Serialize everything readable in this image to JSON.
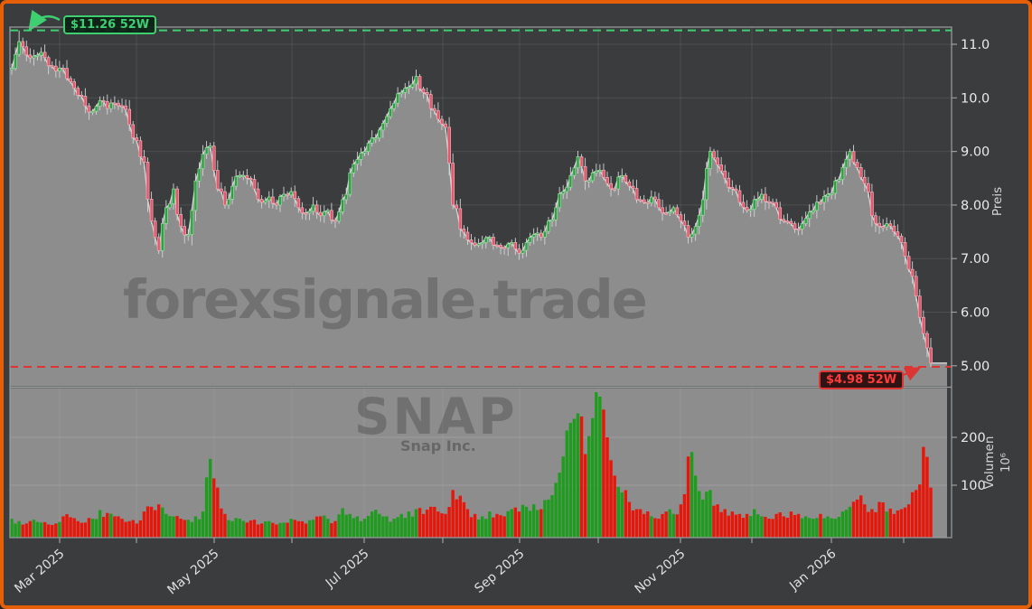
{
  "watermark": {
    "main": "forexsignale.trade",
    "symbol": "SNAP",
    "company": "Snap Inc."
  },
  "callouts": {
    "high": {
      "label": "$11.26 52W",
      "value": 11.26
    },
    "low": {
      "label": "$4.98 52W",
      "value": 4.98
    }
  },
  "axes": {
    "price_axis_label": "Preis",
    "volume_axis_label": "Volumen",
    "volume_scale_label": "10⁶",
    "price_ticks": [
      {
        "label": "11.0",
        "value": 11.0
      },
      {
        "label": "10.0",
        "value": 10.0
      },
      {
        "label": "9.00",
        "value": 9.0
      },
      {
        "label": "8.00",
        "value": 8.0
      },
      {
        "label": "7.00",
        "value": 7.0
      },
      {
        "label": "6.00",
        "value": 6.0
      },
      {
        "label": "5.00",
        "value": 5.0
      }
    ],
    "volume_ticks": [
      {
        "label": "200",
        "value": 200
      },
      {
        "label": "100",
        "value": 100
      }
    ],
    "x_ticks": [
      {
        "label": "Mar 2025"
      },
      {
        "label": ""
      },
      {
        "label": "May 2025"
      },
      {
        "label": ""
      },
      {
        "label": "Jul 2025"
      },
      {
        "label": ""
      },
      {
        "label": "Sep 2025"
      },
      {
        "label": ""
      },
      {
        "label": "Nov 2025"
      },
      {
        "label": ""
      },
      {
        "label": "Jan 2026"
      },
      {
        "label": ""
      }
    ]
  },
  "chart_data": {
    "type": "candlestick",
    "symbol": "SNAP",
    "x_range": "mid-Feb 2025 to mid-Feb 2026 (52 weeks, daily candles)",
    "sampling_note": "close prices and volumes estimated from chart, sampled every ~2 trading days left to right",
    "high_52w": 11.26,
    "low_52w": 4.98,
    "last_close": 5.05,
    "price_axis_range": [
      4.6,
      11.35
    ],
    "volume_axis_range_millions": [
      0,
      300
    ],
    "grid": true,
    "legend": "none",
    "close": [
      10.55,
      11.05,
      10.8,
      10.78,
      10.85,
      10.6,
      10.5,
      10.55,
      10.3,
      10.05,
      9.85,
      9.75,
      9.95,
      9.8,
      9.9,
      9.85,
      9.5,
      9.2,
      8.8,
      7.7,
      7.15,
      7.95,
      8.3,
      7.6,
      7.45,
      8.45,
      8.95,
      9.1,
      8.3,
      8.0,
      8.35,
      8.55,
      8.5,
      8.3,
      8.05,
      8.15,
      8.0,
      8.2,
      8.25,
      7.95,
      7.85,
      8.0,
      7.8,
      7.9,
      7.7,
      8.1,
      8.6,
      8.85,
      9.0,
      9.25,
      9.4,
      9.65,
      9.9,
      10.1,
      10.2,
      10.4,
      10.1,
      9.8,
      9.6,
      9.45,
      8.0,
      7.55,
      7.35,
      7.25,
      7.3,
      7.4,
      7.25,
      7.2,
      7.3,
      7.1,
      7.3,
      7.45,
      7.4,
      7.7,
      7.95,
      8.25,
      8.55,
      8.9,
      8.45,
      8.6,
      8.65,
      8.4,
      8.3,
      8.55,
      8.35,
      8.1,
      8.05,
      8.15,
      7.95,
      7.85,
      7.95,
      7.7,
      7.4,
      7.6,
      8.1,
      9.0,
      8.75,
      8.5,
      8.3,
      8.05,
      7.9,
      8.1,
      8.2,
      8.05,
      7.95,
      7.7,
      7.65,
      7.55,
      7.75,
      7.9,
      8.05,
      8.2,
      8.45,
      8.7,
      9.0,
      8.7,
      8.4,
      7.8,
      7.6,
      7.65,
      7.5,
      7.3,
      6.8,
      6.3,
      5.6,
      5.05
    ],
    "volume_millions": [
      30,
      25,
      20,
      28,
      22,
      18,
      20,
      35,
      33,
      25,
      22,
      30,
      48,
      42,
      35,
      30,
      25,
      20,
      45,
      55,
      60,
      40,
      35,
      30,
      28,
      35,
      45,
      155,
      95,
      40,
      25,
      30,
      22,
      28,
      20,
      25,
      18,
      22,
      30,
      25,
      20,
      28,
      35,
      30,
      25,
      52,
      40,
      35,
      30,
      45,
      40,
      35,
      30,
      40,
      45,
      50,
      40,
      55,
      45,
      40,
      90,
      78,
      50,
      40,
      35,
      45,
      40,
      35,
      50,
      45,
      55,
      60,
      50,
      70,
      105,
      160,
      230,
      250,
      165,
      240,
      285,
      200,
      120,
      85,
      65,
      50,
      40,
      35,
      30,
      45,
      40,
      60,
      160,
      120,
      70,
      90,
      60,
      50,
      45,
      40,
      40,
      50,
      35,
      30,
      40,
      35,
      45,
      40,
      35,
      30,
      40,
      35,
      30,
      45,
      55,
      70,
      60,
      50,
      65,
      45,
      40,
      50,
      60,
      90,
      180,
      95
    ],
    "colors": {
      "background": "#3a3c3d",
      "frame_orange": "#e45f07",
      "area_fill": "#8d8d8d",
      "area_edge": "#dadcdd",
      "candle_up_fill": "#2f9e44",
      "candle_up_edge": "#8fe09b",
      "candle_down_fill": "#e4586b",
      "candle_down_edge": "#f3aeb9",
      "wick": "#d2d5d6",
      "volume_up": "#1e9c1e",
      "volume_down": "#e81508",
      "high_line": "#3ecf71",
      "low_line": "#dd3434",
      "spine": "#9aa0a1",
      "tick_text": "#e9eaea"
    }
  }
}
